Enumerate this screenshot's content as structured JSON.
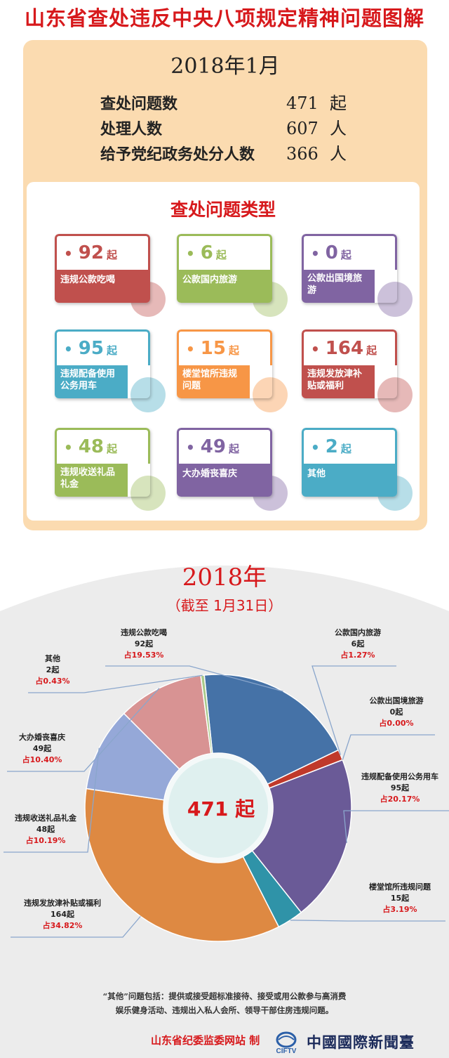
{
  "main_title": "山东省查处违反中央八项规定精神问题图解",
  "month": "2018年1月",
  "stats": [
    {
      "label": "查处问题数",
      "value": "471",
      "unit": "起"
    },
    {
      "label": "处理人数",
      "value": "607",
      "unit": "人"
    },
    {
      "label": "给予党纪政务处分人数",
      "value": "366",
      "unit": "人"
    }
  ],
  "types_title": "查处问题类型",
  "cards": [
    {
      "dot": "•",
      "value": "92",
      "unit": "起",
      "label": "违规公款吃喝",
      "color": "#c0504d"
    },
    {
      "dot": "•",
      "value": "6",
      "unit": "起",
      "label": "公款国内旅游",
      "color": "#9bbb59"
    },
    {
      "dot": "•",
      "value": "0",
      "unit": "起",
      "label": "公款出国境旅游",
      "color": "#8064a2"
    },
    {
      "dot": "•",
      "value": "95",
      "unit": "起",
      "label": "违规配备使用公务用车",
      "color": "#4bacc6"
    },
    {
      "dot": "•",
      "value": "15",
      "unit": "起",
      "label": "楼堂馆所违规问题",
      "color": "#f79646"
    },
    {
      "dot": "•",
      "value": "164",
      "unit": "起",
      "label": "违规发放津补贴或福利",
      "color": "#c0504d"
    },
    {
      "dot": "•",
      "value": "48",
      "unit": "起",
      "label": "违规收送礼品礼金",
      "color": "#9bbb59"
    },
    {
      "dot": "•",
      "value": "49",
      "unit": "起",
      "label": "大办婚丧喜庆",
      "color": "#8064a2"
    },
    {
      "dot": "•",
      "value": "2",
      "unit": "起",
      "label": "其他",
      "color": "#4bacc6"
    }
  ],
  "year": "2018年",
  "as_of": "（截至 1月31日）",
  "center_label": "471 起",
  "chart_data": {
    "type": "pie",
    "total": 471,
    "unit": "起",
    "slices": [
      {
        "name": "违规公款吃喝",
        "count_label": "92起",
        "pct_label": "占19.53%",
        "value": 92,
        "color": "#4572a7"
      },
      {
        "name": "公款国内旅游",
        "count_label": "6起",
        "pct_label": "占1.27%",
        "value": 6,
        "color": "#c0392b"
      },
      {
        "name": "公款出国境旅游",
        "count_label": "0起",
        "pct_label": "占0.00%",
        "value": 0,
        "color": "#6a5a97"
      },
      {
        "name": "违规配备使用公务用车",
        "count_label": "95起",
        "pct_label": "占20.17%",
        "value": 95,
        "color": "#6a5a97"
      },
      {
        "name": "楼堂馆所违规问题",
        "count_label": "15起",
        "pct_label": "占3.19%",
        "value": 15,
        "color": "#2f93a8"
      },
      {
        "name": "违规发放津补贴或福利",
        "count_label": "164起",
        "pct_label": "占34.82%",
        "value": 164,
        "color": "#de8942"
      },
      {
        "name": "违规收送礼品礼金",
        "count_label": "48起",
        "pct_label": "占10.19%",
        "value": 48,
        "color": "#95a8d8"
      },
      {
        "name": "大办婚丧喜庆",
        "count_label": "49起",
        "pct_label": "占10.40%",
        "value": 49,
        "color": "#d89393"
      },
      {
        "name": "其他",
        "count_label": "2起",
        "pct_label": "占0.43%",
        "value": 2,
        "color": "#a9c98a"
      }
    ]
  },
  "note_line1": "“其他”问题包括：提供或接受超标准接待、接受或用公款参与高消费",
  "note_line2": "娱乐健身活动、违规出入私人会所、领导干部住房违规问题。",
  "footer_source": "山东省纪委监委网站  制",
  "footer_logo_text": "CIFTV",
  "footer_org": "中國國際新聞臺"
}
